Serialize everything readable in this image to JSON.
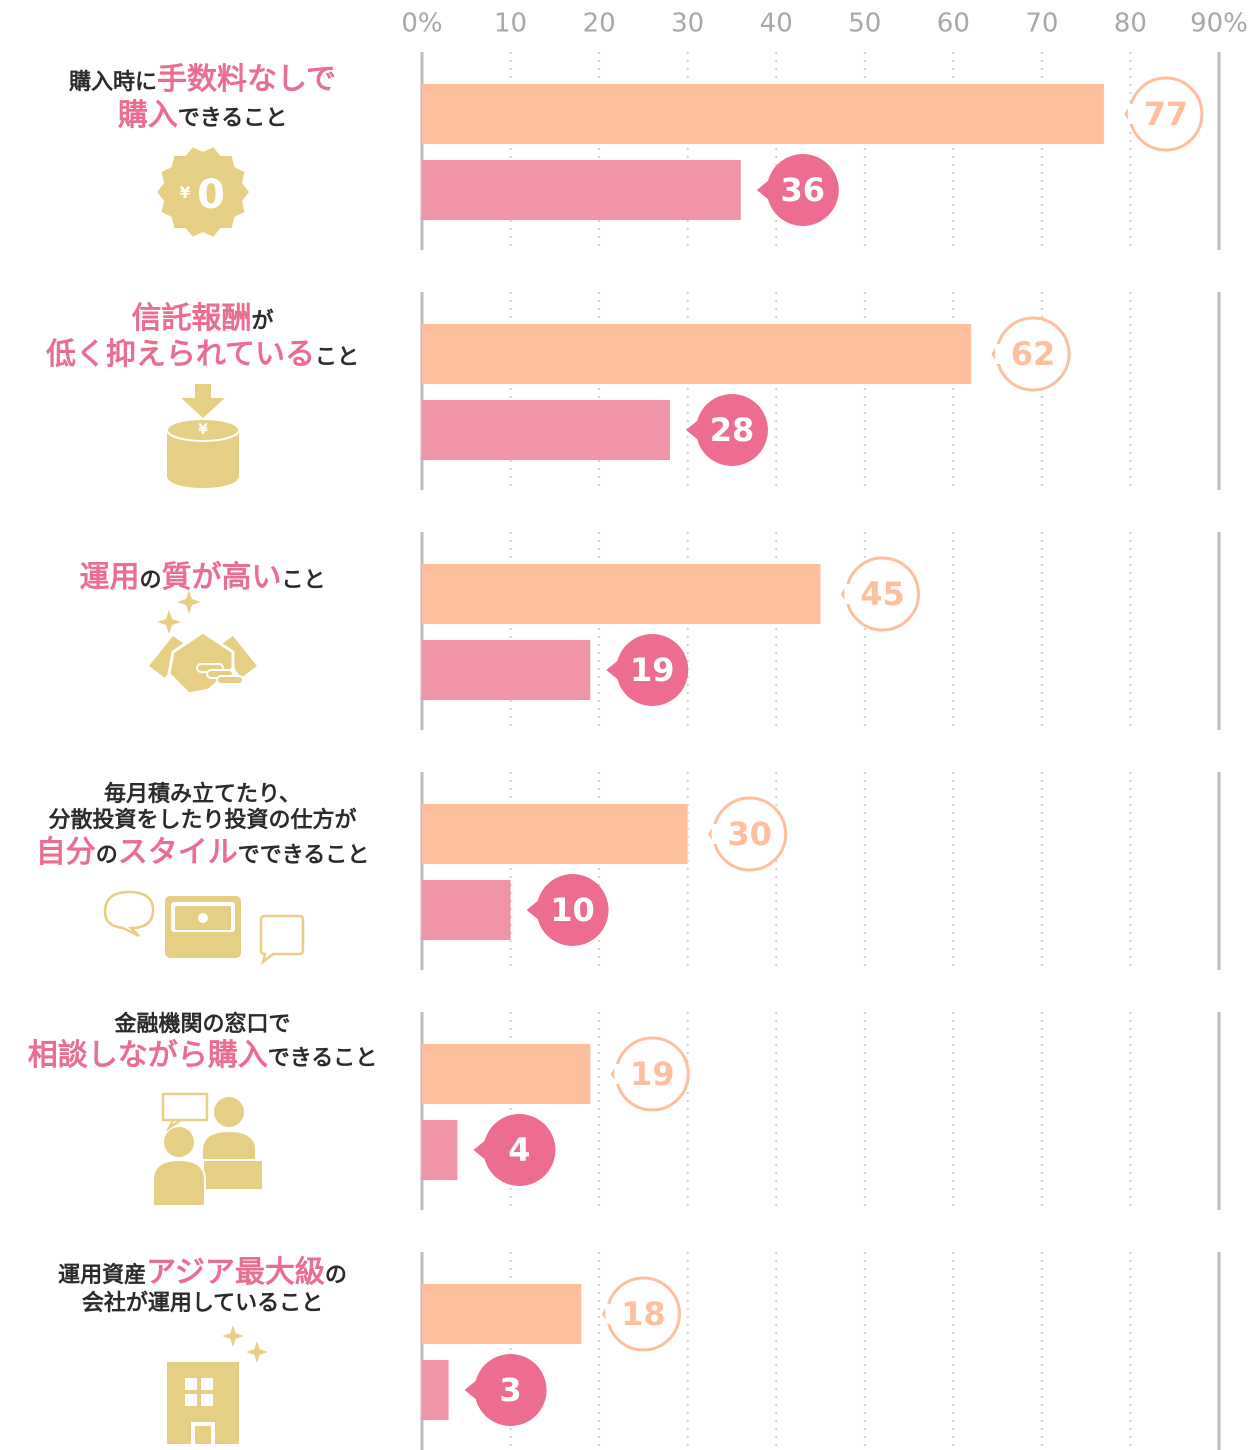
{
  "chart_data": {
    "type": "bar",
    "orientation": "horizontal",
    "xlim": [
      0,
      90
    ],
    "xticks": [
      "0%",
      "10",
      "20",
      "30",
      "40",
      "50",
      "60",
      "70",
      "80",
      "90%"
    ],
    "grid": true,
    "series": [
      {
        "color": "#fdbf9e",
        "values": [
          77,
          62,
          45,
          30,
          19,
          18
        ]
      },
      {
        "color": "#f094a8",
        "values": [
          36,
          28,
          19,
          10,
          4,
          3
        ]
      }
    ],
    "categories": [
      {
        "lines": [
          [
            {
              "t": "購入時に",
              "h": false
            },
            {
              "t": "手数料なしで",
              "h": true
            }
          ],
          [
            {
              "t": "購入",
              "h": true
            },
            {
              "t": "できること",
              "h": false
            }
          ]
        ],
        "icon": "yen-zero-badge-icon"
      },
      {
        "lines": [
          [
            {
              "t": "信託報酬",
              "h": true
            },
            {
              "t": "が",
              "h": false
            }
          ],
          [
            {
              "t": "低く抑えられている",
              "h": true
            },
            {
              "t": "こと",
              "h": false
            }
          ]
        ],
        "icon": "coin-stack-down-arrow-icon"
      },
      {
        "lines": [
          [
            {
              "t": "運用",
              "h": true
            },
            {
              "t": "の",
              "h": false
            },
            {
              "t": "質が高い",
              "h": true
            },
            {
              "t": "こと",
              "h": false
            }
          ]
        ],
        "icon": "handshake-icon"
      },
      {
        "lines": [
          [
            {
              "t": "毎月積み立てたり、",
              "h": false
            }
          ],
          [
            {
              "t": "分散投資をしたり投資の仕方が",
              "h": false
            }
          ],
          [
            {
              "t": "自分",
              "h": true
            },
            {
              "t": "の",
              "h": false
            },
            {
              "t": "スタイル",
              "h": true
            },
            {
              "t": "でできること",
              "h": false
            }
          ]
        ],
        "icon": "wallet-speech-bubbles-icon"
      },
      {
        "lines": [
          [
            {
              "t": "金融機関の窓口で",
              "h": false
            }
          ],
          [
            {
              "t": "相談しながら購入",
              "h": true
            },
            {
              "t": "できること",
              "h": false
            }
          ]
        ],
        "icon": "consultation-people-icon"
      },
      {
        "lines": [
          [
            {
              "t": "運用資産",
              "h": false
            },
            {
              "t": "アジア最大級",
              "h": true
            },
            {
              "t": "の",
              "h": false
            }
          ],
          [
            {
              "t": "会社が運用していること",
              "h": false
            }
          ]
        ],
        "icon": "office-building-icon"
      }
    ]
  },
  "colors": {
    "label_text": "#2b2b2b",
    "highlight": "#ea6e90",
    "icon_gold": "#e6cf85",
    "grid": "#bdbdbd",
    "tick_text": "#a8a8a8"
  }
}
